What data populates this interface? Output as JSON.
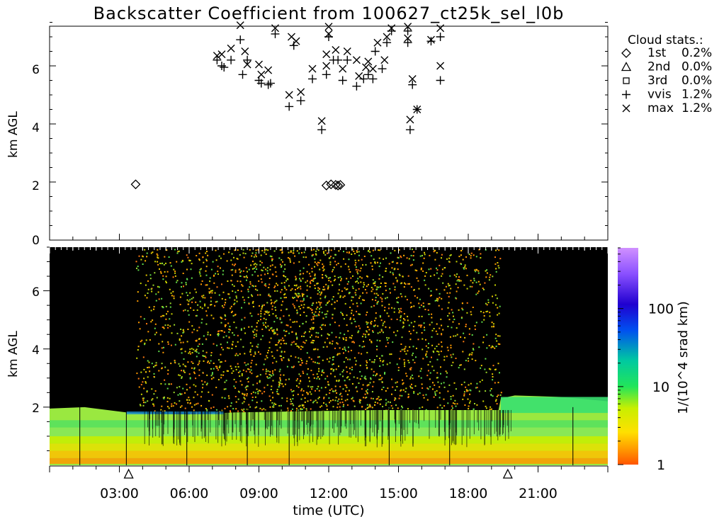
{
  "title": "Backscatter Coefficient from 100627_ct25k_sel_l0b",
  "chart_data": [
    {
      "type": "scatter",
      "ylabel": "km AGL",
      "xlim": [
        0,
        24
      ],
      "ylim": [
        0,
        7.5
      ],
      "yticks": [
        "0",
        "2",
        "4",
        "6"
      ],
      "legend": {
        "title": "Cloud stats.:",
        "position": "right",
        "entries": [
          {
            "symbol": "diamond",
            "name": "1st",
            "value": "0.2%"
          },
          {
            "symbol": "triangle",
            "name": "2nd",
            "value": "0.0%"
          },
          {
            "symbol": "square",
            "name": "3rd",
            "value": "0.0%"
          },
          {
            "symbol": "plus",
            "name": "vvis",
            "value": "1.2%"
          },
          {
            "symbol": "cross",
            "name": "max",
            "value": "1.2%"
          }
        ]
      },
      "series": [
        {
          "symbol": "diamond",
          "points": [
            [
              3.7,
              1.92
            ],
            [
              11.9,
              1.88
            ],
            [
              12.1,
              1.92
            ],
            [
              12.3,
              1.9
            ],
            [
              12.4,
              1.88
            ],
            [
              12.5,
              1.9
            ]
          ]
        },
        {
          "symbol": "plus",
          "points": [
            [
              7.2,
              6.2
            ],
            [
              7.4,
              6.0
            ],
            [
              7.5,
              5.95
            ],
            [
              7.8,
              6.2
            ],
            [
              8.2,
              6.9
            ],
            [
              8.3,
              5.7
            ],
            [
              8.5,
              6.2
            ],
            [
              9.0,
              5.5
            ],
            [
              9.1,
              5.4
            ],
            [
              9.4,
              5.35
            ],
            [
              9.5,
              5.4
            ],
            [
              9.7,
              7.1
            ],
            [
              10.3,
              4.6
            ],
            [
              10.5,
              6.7
            ],
            [
              10.8,
              4.8
            ],
            [
              11.3,
              5.55
            ],
            [
              11.7,
              3.8
            ],
            [
              11.9,
              5.7
            ],
            [
              12.0,
              7.0
            ],
            [
              12.2,
              6.2
            ],
            [
              12.4,
              6.2
            ],
            [
              12.6,
              5.5
            ],
            [
              12.8,
              6.2
            ],
            [
              13.2,
              5.3
            ],
            [
              13.5,
              5.55
            ],
            [
              13.7,
              5.7
            ],
            [
              13.9,
              5.55
            ],
            [
              14.0,
              6.5
            ],
            [
              14.3,
              5.9
            ],
            [
              14.5,
              6.8
            ],
            [
              14.7,
              7.2
            ],
            [
              15.4,
              6.8
            ],
            [
              15.4,
              7.2
            ],
            [
              15.5,
              3.8
            ],
            [
              15.6,
              5.35
            ],
            [
              15.8,
              4.5
            ],
            [
              16.4,
              6.85
            ],
            [
              16.8,
              5.5
            ],
            [
              16.8,
              7.0
            ]
          ]
        },
        {
          "symbol": "cross",
          "points": [
            [
              7.2,
              6.35
            ],
            [
              7.4,
              6.4
            ],
            [
              7.8,
              6.6
            ],
            [
              8.2,
              7.4
            ],
            [
              8.4,
              6.5
            ],
            [
              8.5,
              6.05
            ],
            [
              9.0,
              6.05
            ],
            [
              9.1,
              5.7
            ],
            [
              9.4,
              5.85
            ],
            [
              9.7,
              7.3
            ],
            [
              10.3,
              5.0
            ],
            [
              10.4,
              7.0
            ],
            [
              10.6,
              6.85
            ],
            [
              10.8,
              5.1
            ],
            [
              11.3,
              5.9
            ],
            [
              11.7,
              4.1
            ],
            [
              11.9,
              6.0
            ],
            [
              11.9,
              6.4
            ],
            [
              12.0,
              7.35
            ],
            [
              12.0,
              7.1
            ],
            [
              12.3,
              6.55
            ],
            [
              12.6,
              5.9
            ],
            [
              12.8,
              6.5
            ],
            [
              13.2,
              6.2
            ],
            [
              13.3,
              5.65
            ],
            [
              13.6,
              5.95
            ],
            [
              13.7,
              6.15
            ],
            [
              13.9,
              5.9
            ],
            [
              14.1,
              6.8
            ],
            [
              14.4,
              6.2
            ],
            [
              14.5,
              7.0
            ],
            [
              14.7,
              7.3
            ],
            [
              15.4,
              7.35
            ],
            [
              15.4,
              6.95
            ],
            [
              15.5,
              4.15
            ],
            [
              15.6,
              5.55
            ],
            [
              15.8,
              4.5
            ],
            [
              16.4,
              6.9
            ],
            [
              16.8,
              6.0
            ],
            [
              16.8,
              7.3
            ]
          ]
        }
      ]
    },
    {
      "type": "heatmap",
      "xlabel": "time (UTC)",
      "ylabel": "km AGL",
      "xlim": [
        0,
        24
      ],
      "ylim": [
        0,
        7.5
      ],
      "xticks": [
        "03:00",
        "06:00",
        "09:00",
        "12:00",
        "15:00",
        "18:00",
        "21:00"
      ],
      "yticks": [
        "2",
        "4",
        "6"
      ],
      "colorbar": {
        "label": "1/(10^4 srad km)",
        "scale": "log",
        "range": [
          1,
          600
        ],
        "ticks": [
          "1",
          "10",
          "100"
        ],
        "colors": [
          "#ff5500",
          "#ff9900",
          "#ffe000",
          "#c8ef00",
          "#22e55a",
          "#00c9a0",
          "#0050f0",
          "#2000d0",
          "#8a50ff",
          "#d090ff"
        ]
      },
      "cloud_layer_top_km": [
        [
          0,
          1.95
        ],
        [
          1.5,
          2.0
        ],
        [
          3.5,
          1.8
        ],
        [
          6,
          1.75
        ],
        [
          8,
          1.82
        ],
        [
          14,
          1.9
        ],
        [
          19.3,
          1.9
        ],
        [
          19.4,
          2.3
        ],
        [
          20,
          2.4
        ],
        [
          22,
          2.35
        ],
        [
          24,
          2.2
        ]
      ],
      "daylight_hours": [
        3.7,
        19.4
      ],
      "marker_triangles": [
        3.4,
        19.7
      ]
    }
  ]
}
